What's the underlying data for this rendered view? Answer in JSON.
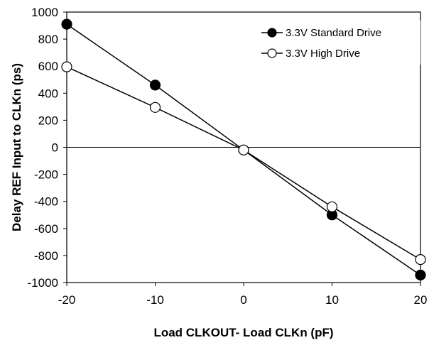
{
  "chart_data": {
    "type": "line",
    "title": "",
    "xlabel": "Load CLKOUT- Load CLKn (pF)",
    "ylabel": "Delay REF Input to CLKn (ps)",
    "xlim": [
      -20,
      20
    ],
    "ylim": [
      -1000,
      1000
    ],
    "xticks": [
      -20,
      -10,
      0,
      10,
      20
    ],
    "yticks": [
      1000,
      800,
      600,
      400,
      200,
      0,
      -200,
      -400,
      -600,
      -800,
      -1000
    ],
    "grid": "horizontal line at y=0 only",
    "legend_position": "top-right",
    "series": [
      {
        "name": "3.3V Standard Drive",
        "marker": "filled-circle",
        "color": "#000000",
        "x": [
          -20,
          -10,
          0,
          10,
          20
        ],
        "y": [
          910,
          460,
          -20,
          -500,
          -945
        ]
      },
      {
        "name": "3.3V High Drive",
        "marker": "open-circle",
        "color": "#000000",
        "x": [
          -20,
          -10,
          0,
          10,
          20
        ],
        "y": [
          595,
          295,
          -20,
          -440,
          -830
        ]
      }
    ]
  }
}
